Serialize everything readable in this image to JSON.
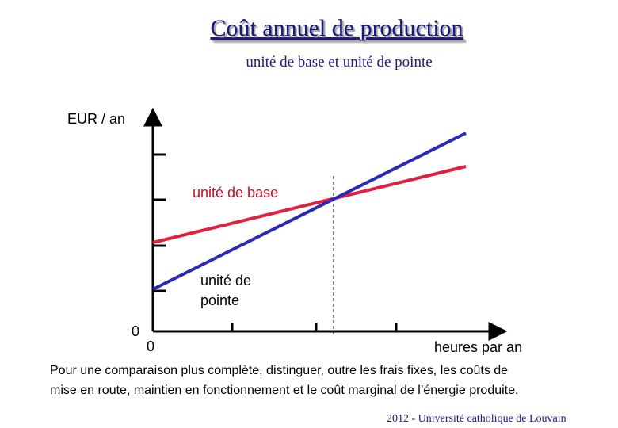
{
  "header": {
    "title": "Coût annuel de production",
    "subtitle": "unité de base et unité de pointe"
  },
  "diagram": {
    "y_axis_label": "EUR / an",
    "x_axis_label": "heures par an",
    "y_origin_label": "0",
    "x_origin_label": "0",
    "base_label": "unité de base",
    "peak_label": [
      "unité de",
      "pointe"
    ]
  },
  "caption": [
    "Pour une comparaison plus complète, distinguer, outre les frais fixes, les coûts de",
    "mise en route, maintien en fonctionnement et le coût marginal de l’énergie produite."
  ],
  "footer": "2012 - Université catholique de Louvain"
}
